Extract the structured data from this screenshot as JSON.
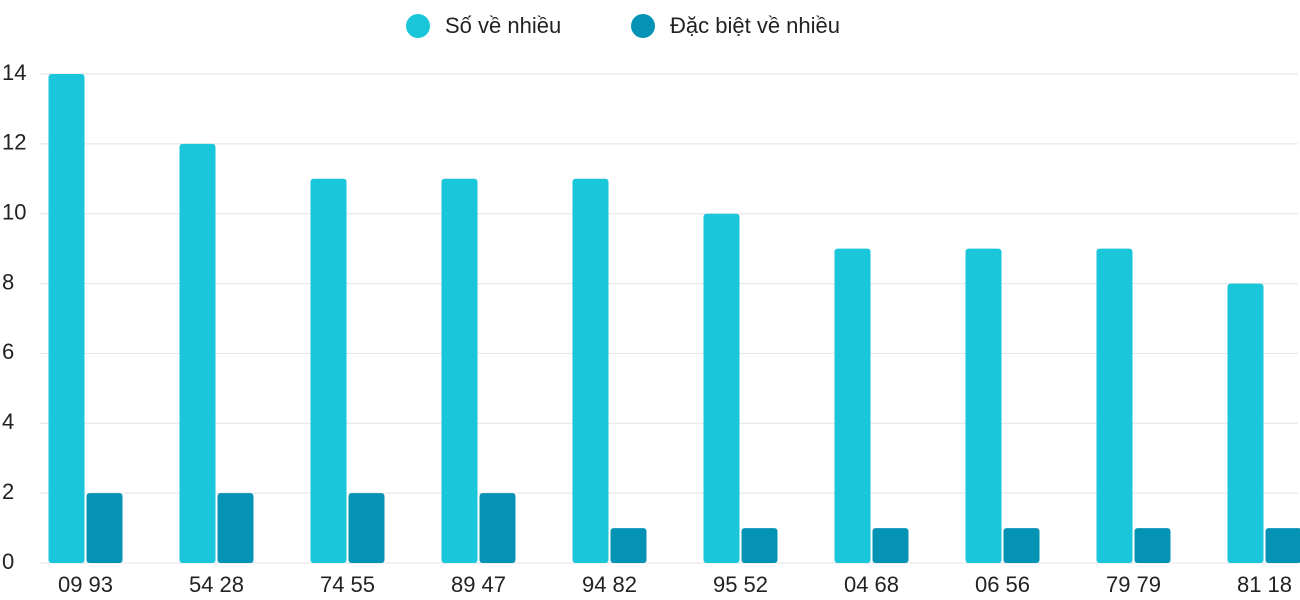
{
  "chart_data": {
    "type": "bar",
    "categories": [
      "09 93",
      "54 28",
      "74 55",
      "89 47",
      "94 82",
      "95 52",
      "04 68",
      "06 56",
      "79 79",
      "81 18"
    ],
    "series": [
      {
        "name": "Số về nhiều",
        "color": "#1ac6d9",
        "values": [
          14,
          12,
          11,
          11,
          11,
          10,
          9,
          9,
          9,
          8
        ]
      },
      {
        "name": "Đặc biệt về nhiều",
        "color": "#0593b5",
        "values": [
          2,
          2,
          2,
          2,
          1,
          1,
          1,
          1,
          1,
          1
        ]
      }
    ],
    "ylim": [
      0,
      14
    ],
    "yticks": [
      0,
      2,
      4,
      6,
      8,
      10,
      12,
      14
    ],
    "grid": true
  }
}
